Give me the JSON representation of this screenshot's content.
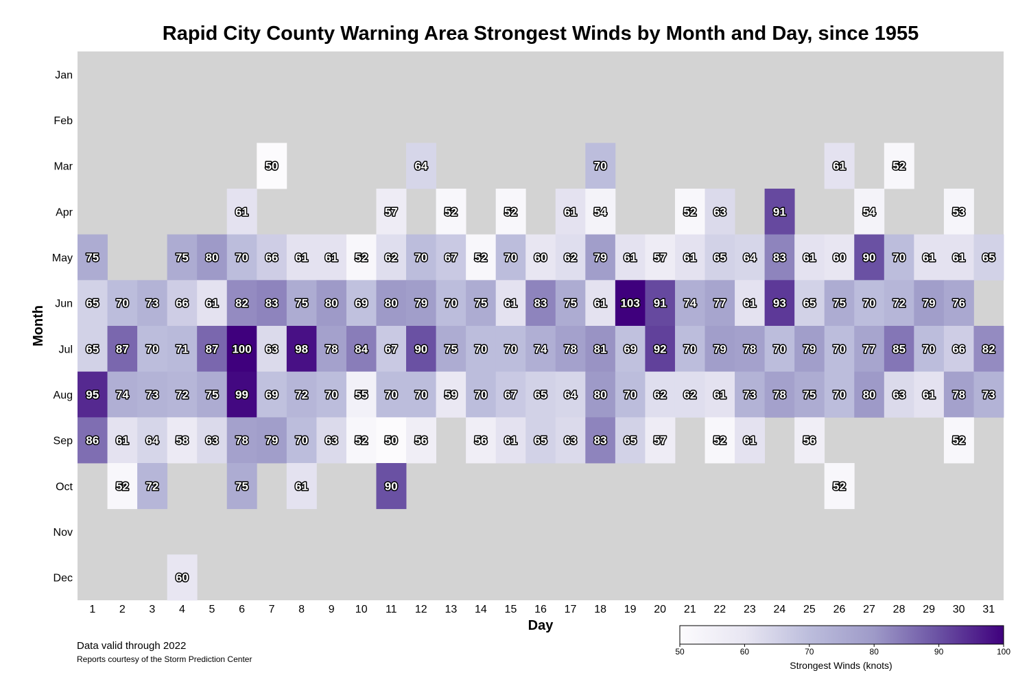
{
  "chart_data": {
    "type": "heatmap",
    "title": "Rapid City County Warning Area Strongest Winds by Month and Day, since 1955",
    "xlabel": "Day",
    "ylabel": "Month",
    "x_categories": [
      "1",
      "2",
      "3",
      "4",
      "5",
      "6",
      "7",
      "8",
      "9",
      "10",
      "11",
      "12",
      "13",
      "14",
      "15",
      "16",
      "17",
      "18",
      "19",
      "20",
      "21",
      "22",
      "23",
      "24",
      "25",
      "26",
      "27",
      "28",
      "29",
      "30",
      "31"
    ],
    "y_categories": [
      "Jan",
      "Feb",
      "Mar",
      "Apr",
      "May",
      "Jun",
      "Jul",
      "Aug",
      "Sep",
      "Oct",
      "Nov",
      "Dec"
    ],
    "values": [
      [
        null,
        null,
        null,
        null,
        null,
        null,
        null,
        null,
        null,
        null,
        null,
        null,
        null,
        null,
        null,
        null,
        null,
        null,
        null,
        null,
        null,
        null,
        null,
        null,
        null,
        null,
        null,
        null,
        null,
        null,
        null
      ],
      [
        null,
        null,
        null,
        null,
        null,
        null,
        null,
        null,
        null,
        null,
        null,
        null,
        null,
        null,
        null,
        null,
        null,
        null,
        null,
        null,
        null,
        null,
        null,
        null,
        null,
        null,
        null,
        null,
        null,
        null,
        null
      ],
      [
        null,
        null,
        null,
        null,
        null,
        null,
        50,
        null,
        null,
        null,
        null,
        64,
        null,
        null,
        null,
        null,
        null,
        70,
        null,
        null,
        null,
        null,
        null,
        null,
        null,
        61,
        null,
        52,
        null,
        null,
        null
      ],
      [
        null,
        null,
        null,
        null,
        null,
        61,
        null,
        null,
        null,
        null,
        57,
        null,
        52,
        null,
        52,
        null,
        61,
        54,
        null,
        null,
        52,
        63,
        null,
        91,
        null,
        null,
        54,
        null,
        null,
        53,
        null
      ],
      [
        75,
        null,
        null,
        75,
        80,
        70,
        66,
        61,
        61,
        52,
        62,
        70,
        67,
        52,
        70,
        60,
        62,
        79,
        61,
        57,
        61,
        65,
        64,
        83,
        61,
        60,
        90,
        70,
        61,
        61,
        65
      ],
      [
        65,
        70,
        73,
        66,
        61,
        82,
        83,
        75,
        80,
        69,
        80,
        79,
        70,
        75,
        61,
        83,
        75,
        61,
        103,
        91,
        74,
        77,
        61,
        93,
        65,
        75,
        70,
        72,
        79,
        76,
        null
      ],
      [
        65,
        87,
        70,
        71,
        87,
        100,
        63,
        98,
        78,
        84,
        67,
        90,
        75,
        70,
        70,
        74,
        78,
        81,
        69,
        92,
        70,
        79,
        78,
        70,
        79,
        70,
        77,
        85,
        70,
        66,
        82
      ],
      [
        95,
        74,
        73,
        72,
        75,
        99,
        69,
        72,
        70,
        55,
        70,
        70,
        59,
        70,
        67,
        65,
        64,
        80,
        70,
        62,
        62,
        61,
        73,
        78,
        75,
        70,
        80,
        63,
        61,
        78,
        73
      ],
      [
        86,
        61,
        64,
        58,
        63,
        78,
        79,
        70,
        63,
        52,
        50,
        56,
        null,
        56,
        61,
        65,
        63,
        83,
        65,
        57,
        null,
        52,
        61,
        null,
        56,
        null,
        null,
        null,
        null,
        52,
        null
      ],
      [
        null,
        52,
        72,
        null,
        null,
        75,
        null,
        61,
        null,
        null,
        90,
        null,
        null,
        null,
        null,
        null,
        null,
        null,
        null,
        null,
        null,
        null,
        null,
        null,
        null,
        52,
        null,
        null,
        null,
        null,
        null
      ],
      [
        null,
        null,
        null,
        null,
        null,
        null,
        null,
        null,
        null,
        null,
        null,
        null,
        null,
        null,
        null,
        null,
        null,
        null,
        null,
        null,
        null,
        null,
        null,
        null,
        null,
        null,
        null,
        null,
        null,
        null,
        null
      ],
      [
        null,
        null,
        null,
        60,
        null,
        null,
        null,
        null,
        null,
        null,
        null,
        null,
        null,
        null,
        null,
        null,
        null,
        null,
        null,
        null,
        null,
        null,
        null,
        null,
        null,
        null,
        null,
        null,
        null,
        null,
        null
      ]
    ],
    "color_scale": {
      "name": "Purples",
      "vmin": 50,
      "vmax": 100,
      "low_color": "#fcfbfd",
      "high_color": "#3f007d",
      "ticks": [
        "50",
        "60",
        "70",
        "80",
        "90",
        "100"
      ],
      "label": "Strongest Winds (knots)",
      "placement": "bottom-right"
    },
    "background_color": "#d3d3d3",
    "grid": false
  },
  "notes": {
    "valid": "Data valid through 2022",
    "source": "Reports courtesy of the Storm Prediction Center"
  }
}
